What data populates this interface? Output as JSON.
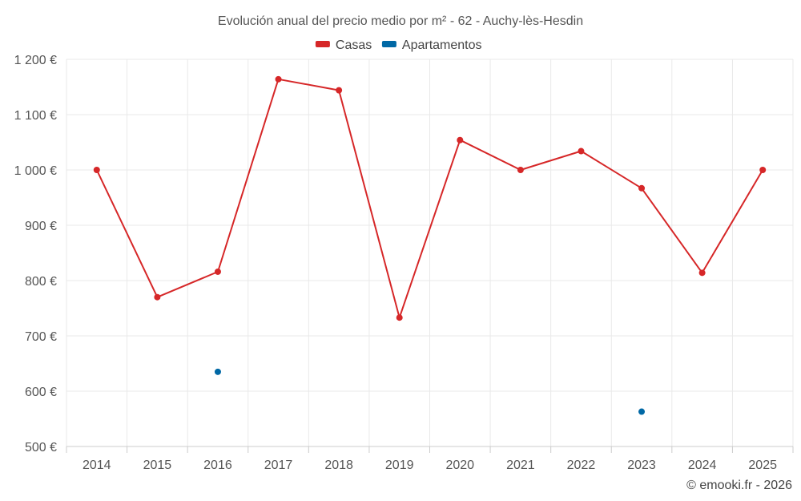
{
  "chart_data": {
    "type": "line",
    "title": "Evolución anual del precio medio por m² - 62 - Auchy-lès-Hesdin",
    "xlabel": "",
    "ylabel": "",
    "categories": [
      "2014",
      "2015",
      "2016",
      "2017",
      "2018",
      "2019",
      "2020",
      "2021",
      "2022",
      "2023",
      "2024",
      "2025"
    ],
    "ylim": [
      500,
      1200
    ],
    "yticks": [
      500,
      600,
      700,
      800,
      900,
      1000,
      1100,
      1200
    ],
    "ytick_labels": [
      "500 €",
      "600 €",
      "700 €",
      "800 €",
      "900 €",
      "1 000 €",
      "1 100 €",
      "1 200 €"
    ],
    "grid": true,
    "legend_position": "top-center",
    "series": [
      {
        "name": "Casas",
        "color": "#d62728",
        "values": [
          1000,
          770,
          816,
          1164,
          1144,
          733,
          1054,
          1000,
          1034,
          967,
          814,
          1000
        ]
      },
      {
        "name": "Apartamentos",
        "color": "#0068a5",
        "values": [
          null,
          null,
          635,
          null,
          null,
          null,
          null,
          null,
          null,
          563,
          null,
          null
        ]
      }
    ]
  },
  "credit": "© emooki.fr - 2026"
}
